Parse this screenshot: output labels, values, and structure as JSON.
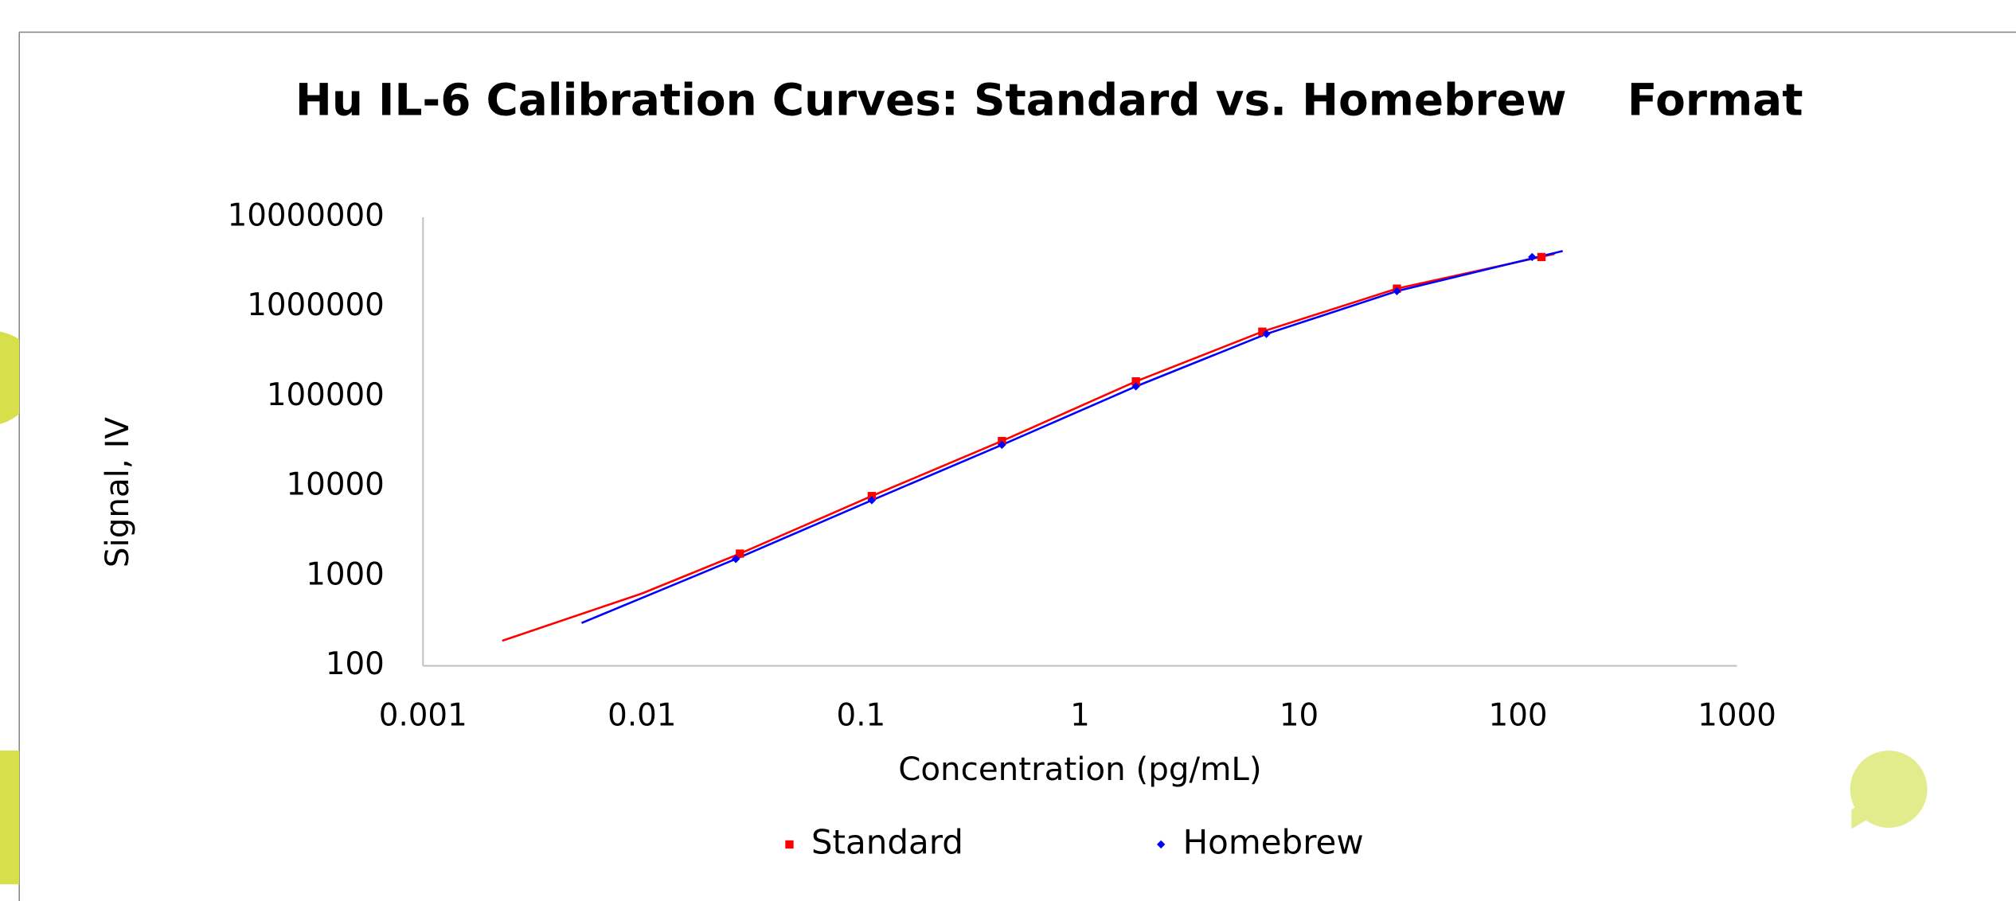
{
  "chart_data": {
    "type": "scatter",
    "title": "Hu IL-6 Calibration Curves: Standard vs. Homebrew    Format",
    "x_label": "Concentration (pg/mL)",
    "y_label": "Signal, IV",
    "xscale": "log",
    "yscale": "log",
    "xlim": [
      0.001,
      1000
    ],
    "ylim": [
      100,
      10000000
    ],
    "xticks": [
      0.001,
      0.01,
      0.1,
      1,
      10,
      100,
      1000
    ],
    "yticks": [
      100,
      1000,
      10000,
      100000,
      1000000,
      10000000
    ],
    "grid": false,
    "legend": "bottom",
    "series": [
      {
        "name": "Standard",
        "color": "#ff0000",
        "marker": "square",
        "x": [
          0.028,
          0.112,
          0.44,
          1.8,
          6.8,
          28,
          128
        ],
        "values": [
          1780,
          7800,
          32000,
          148000,
          530000,
          1600000,
          3600000
        ],
        "curve": {
          "x": [
            0.0023,
            0.01,
            0.028,
            0.112,
            0.44,
            1.8,
            6.8,
            28,
            147
          ],
          "values": [
            190,
            640,
            1780,
            7800,
            32000,
            148000,
            530000,
            1600000,
            3900000
          ]
        }
      },
      {
        "name": "Homebrew",
        "color": "#0000ff",
        "marker": "diamond",
        "x": [
          0.0268,
          0.112,
          0.44,
          1.8,
          7.1,
          28,
          116
        ],
        "values": [
          1550,
          7000,
          29000,
          130000,
          500000,
          1500000,
          3600000
        ],
        "curve": {
          "x": [
            0.0053,
            0.0268,
            0.112,
            0.44,
            1.8,
            7.1,
            28,
            160
          ],
          "values": [
            300,
            1550,
            7000,
            29000,
            130000,
            500000,
            1500000,
            4200000
          ]
        }
      }
    ]
  }
}
